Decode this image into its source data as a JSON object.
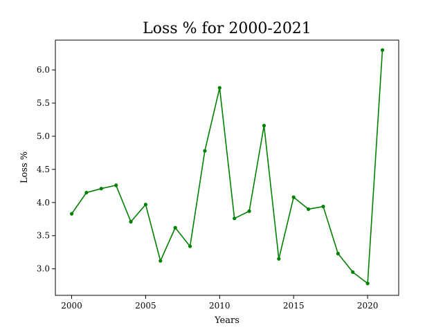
{
  "chart_data": {
    "type": "line",
    "title": "Loss % for 2000-2021",
    "xlabel": "Years",
    "ylabel": "Loss %",
    "x": [
      2000,
      2001,
      2002,
      2003,
      2004,
      2005,
      2006,
      2007,
      2008,
      2009,
      2010,
      2011,
      2012,
      2013,
      2014,
      2015,
      2016,
      2017,
      2018,
      2019,
      2020,
      2021
    ],
    "series": [
      {
        "color": "#008000",
        "marker": "circle",
        "values": [
          3.83,
          4.15,
          4.21,
          4.26,
          3.71,
          3.97,
          3.12,
          3.62,
          3.34,
          4.78,
          5.73,
          3.76,
          3.87,
          5.16,
          3.15,
          4.08,
          3.9,
          3.94,
          3.23,
          2.95,
          2.78,
          6.3
        ]
      }
    ],
    "xlim": [
      1998.9,
      2022.1
    ],
    "ylim": [
      2.6,
      6.45
    ],
    "xticks": [
      "2000",
      "2005",
      "2010",
      "2015",
      "2020"
    ],
    "yticks": [
      "3.0",
      "3.5",
      "4.0",
      "4.5",
      "5.0",
      "5.5",
      "6.0"
    ],
    "grid": false,
    "legend": "none"
  }
}
